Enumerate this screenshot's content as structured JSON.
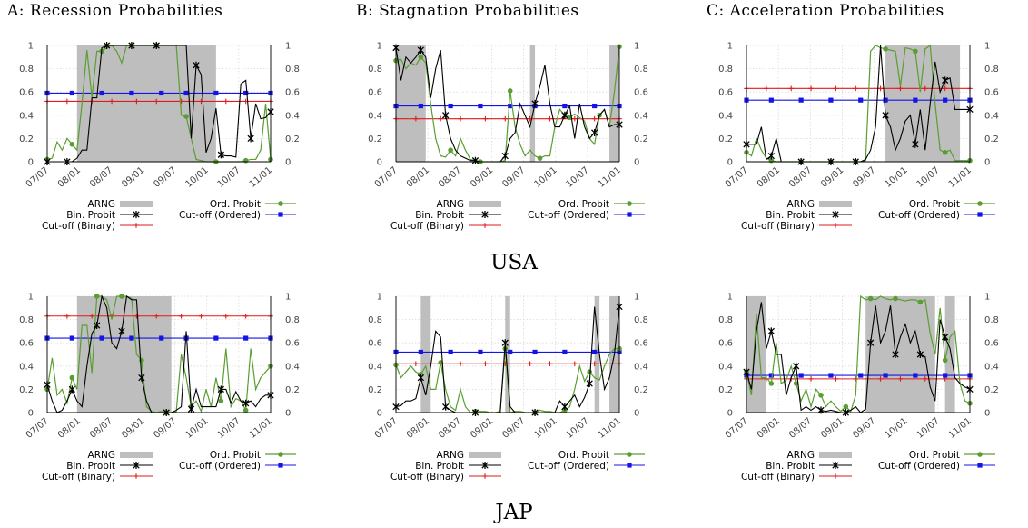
{
  "column_titles": [
    "A: Recession Probabilities",
    "B: Stagnation Probabilities",
    "C: Acceleration Probabilities"
  ],
  "row_labels": [
    "USA",
    "JAP"
  ],
  "legend": {
    "arng": "ARNG",
    "binary": "Bin. Probit",
    "cutoff_binary": "Cut-off (Binary)",
    "ordered": "Ord. Probit",
    "cutoff_ordered": "Cut-off (Ordered)"
  },
  "colors": {
    "arng": "#bebebe",
    "binary": "#000000",
    "ordered": "#5a9e32",
    "cutoff_binary": "#e31a1c",
    "cutoff_ordered": "#1414e6",
    "grid": "#d9d9d9"
  },
  "y_ticks": [
    "0",
    "0.2",
    "0.4",
    "0.6",
    "0.8",
    "1"
  ],
  "chart_data": [
    {
      "type": "line",
      "country": "USA",
      "panel": "A",
      "x_ticks": [
        "07/07",
        "08/01",
        "08/07",
        "09/01",
        "09/07",
        "10/01",
        "10/07",
        "11/01"
      ],
      "ylim": [
        0,
        1
      ],
      "grid": true,
      "legend_position": "bottom",
      "arng": [
        [
          6.0,
          34.0
        ]
      ],
      "cutoff_binary": 0.52,
      "cutoff_ordered": 0.59,
      "binary": [
        0,
        0,
        0,
        0,
        0,
        0,
        0.03,
        0.1,
        0.1,
        0.55,
        0.55,
        0.98,
        1,
        1,
        1,
        1,
        1,
        1,
        1,
        1,
        1,
        1,
        1,
        1,
        1,
        1,
        1,
        1,
        1,
        0.2,
        0.83,
        0.75,
        0.08,
        0.2,
        0.46,
        0.06,
        0.05,
        0.05,
        0.04,
        0.67,
        0.7,
        0.2,
        0.5,
        0.37,
        0.38,
        0.43
      ],
      "ordered": [
        0.02,
        0.03,
        0.17,
        0.1,
        0.2,
        0.15,
        0.1,
        0.5,
        0.96,
        0.55,
        0.95,
        0.95,
        0.98,
        1,
        0.95,
        0.85,
        1,
        1,
        1,
        1,
        1,
        1,
        1,
        1,
        1,
        1,
        1,
        0.4,
        0.39,
        0.2,
        0.02,
        0.01,
        0,
        0,
        0,
        0,
        0,
        0,
        0,
        0,
        0.01,
        0.02,
        0.02,
        0.1,
        0.5,
        0.02
      ],
      "bin_markers": [
        0,
        4,
        12,
        17,
        22,
        30,
        35,
        41,
        45
      ],
      "ord_markers": [
        0,
        5,
        11,
        17,
        22,
        28,
        34,
        40,
        45
      ],
      "cb_markers": [
        0,
        4,
        9,
        13,
        18,
        22,
        27,
        31,
        36,
        40,
        45
      ],
      "co_markers": [
        0,
        5,
        11,
        17,
        23,
        28,
        34,
        40,
        45
      ]
    },
    {
      "type": "line",
      "country": "USA",
      "panel": "B",
      "x_ticks": [
        "07/07",
        "08/01",
        "08/07",
        "09/01",
        "09/07",
        "10/01",
        "10/07",
        "11/01"
      ],
      "ylim": [
        0,
        1
      ],
      "grid": true,
      "legend_position": "bottom",
      "arng": [
        [
          0.0,
          6.0
        ],
        [
          27.0,
          28.0
        ],
        [
          43.0,
          45.0
        ]
      ],
      "cutoff_binary": 0.37,
      "cutoff_ordered": 0.48,
      "binary": [
        0.98,
        0.7,
        0.9,
        0.85,
        0.9,
        0.96,
        0.9,
        0.55,
        0.8,
        0.96,
        0.4,
        0.2,
        0.1,
        0.05,
        0.03,
        0.01,
        0.01,
        0,
        0,
        0,
        0,
        0,
        0.05,
        0.2,
        0.25,
        0.5,
        0.4,
        0.3,
        0.5,
        0.65,
        0.83,
        0.5,
        0.3,
        0.3,
        0.4,
        0.48,
        0.2,
        0.5,
        0.3,
        0.2,
        0.25,
        0.4,
        0.45,
        0.3,
        0.32,
        0.32
      ],
      "ordered": [
        0.87,
        0.88,
        0.8,
        0.85,
        0.83,
        0.9,
        0.85,
        0.5,
        0.2,
        0.05,
        0.04,
        0.1,
        0.05,
        0.2,
        0.1,
        0.02,
        0.01,
        0,
        0,
        0,
        0,
        0,
        0.01,
        0.61,
        0.3,
        0.15,
        0.05,
        0.1,
        0.05,
        0.03,
        0.05,
        0.05,
        0.3,
        0.45,
        0.4,
        0.38,
        0.41,
        0.38,
        0.35,
        0.2,
        0.15,
        0.4,
        0.45,
        0.3,
        0.6,
        0.99
      ],
      "bin_markers": [
        0,
        5,
        10,
        16,
        22,
        28,
        34,
        40,
        45
      ],
      "ord_markers": [
        0,
        5,
        11,
        17,
        23,
        29,
        35,
        41,
        45
      ],
      "cb_markers": [
        0,
        4,
        9,
        13,
        18,
        22,
        27,
        31,
        36,
        40,
        45
      ],
      "co_markers": [
        0,
        5,
        11,
        17,
        23,
        28,
        34,
        40,
        45
      ]
    },
    {
      "type": "line",
      "country": "USA",
      "panel": "C",
      "x_ticks": [
        "07/07",
        "08/01",
        "08/07",
        "09/01",
        "09/07",
        "10/01",
        "10/07",
        "11/01"
      ],
      "ylim": [
        0,
        1
      ],
      "grid": true,
      "legend_position": "bottom",
      "arng": [
        [
          28.0,
          43.0
        ]
      ],
      "cutoff_binary": 0.63,
      "cutoff_ordered": 0.53,
      "binary": [
        0.15,
        0.15,
        0.15,
        0.3,
        0.02,
        0.05,
        0.2,
        0,
        0,
        0,
        0,
        0,
        0,
        0,
        0,
        0,
        0,
        0,
        0,
        0,
        0,
        0,
        0,
        0,
        0.02,
        0.1,
        0.3,
        1,
        0.4,
        0.3,
        0.1,
        0.2,
        0.35,
        0.4,
        0.15,
        0.45,
        0.1,
        0.5,
        0.86,
        0.6,
        0.7,
        0.72,
        0.45,
        0.45,
        0.45,
        0.45
      ],
      "ordered": [
        0.08,
        0.05,
        0.2,
        0.1,
        0.03,
        0.01,
        0,
        0,
        0,
        0,
        0,
        0,
        0,
        0,
        0,
        0,
        0,
        0,
        0,
        0,
        0,
        0,
        0,
        0,
        0.01,
        0.95,
        1,
        0.98,
        0.97,
        0.96,
        0.95,
        0.65,
        0.98,
        0.97,
        0.95,
        0.6,
        0.97,
        1,
        0.5,
        0.1,
        0.08,
        0.1,
        0.01,
        0.01,
        0.01,
        0.01
      ],
      "bin_markers": [
        0,
        5,
        11,
        17,
        22,
        28,
        34,
        40,
        45
      ],
      "ord_markers": [
        0,
        5,
        11,
        17,
        22,
        28,
        34,
        40,
        45
      ],
      "cb_markers": [
        0,
        4,
        9,
        13,
        18,
        22,
        27,
        31,
        36,
        40,
        45
      ],
      "co_markers": [
        0,
        5,
        11,
        17,
        23,
        28,
        34,
        40,
        45
      ]
    },
    {
      "type": "line",
      "country": "JAP",
      "panel": "A",
      "x_ticks": [
        "07/07",
        "08/01",
        "08/07",
        "09/01",
        "09/07",
        "10/01",
        "10/07",
        "11/01"
      ],
      "ylim": [
        0,
        1
      ],
      "grid": true,
      "legend_position": "bottom",
      "arng": [
        [
          6.0,
          16.0
        ],
        [
          16.0,
          25.0
        ]
      ],
      "cutoff_binary": 0.83,
      "cutoff_ordered": 0.64,
      "binary": [
        0.24,
        0.1,
        0,
        0.02,
        0.1,
        0.2,
        0.1,
        0.05,
        0.4,
        0.68,
        0.75,
        1,
        0.9,
        0.6,
        0.55,
        0.7,
        1,
        0.97,
        0.97,
        0.3,
        0.1,
        0,
        0,
        0,
        0,
        0,
        0.02,
        0.05,
        0.7,
        0.03,
        0.2,
        0.05,
        0.05,
        0.05,
        0.05,
        0.2,
        0.2,
        0.08,
        0.18,
        0.1,
        0.08,
        0.1,
        0.05,
        0.12,
        0.15,
        0.15
      ],
      "ordered": [
        0.2,
        0.47,
        0.15,
        0.2,
        0.08,
        0.3,
        0.2,
        0.75,
        0.75,
        0.34,
        1,
        1,
        0.97,
        0.8,
        1,
        1,
        1,
        0.98,
        0.5,
        0.45,
        0.05,
        0.01,
        0,
        0.01,
        0,
        0,
        0.01,
        0.5,
        0.3,
        0.05,
        0.1,
        0.01,
        0.2,
        0.05,
        0.3,
        0.1,
        0.55,
        0.05,
        0.12,
        0.1,
        0.02,
        0.55,
        0.2,
        0.3,
        0.35,
        0.4
      ],
      "bin_markers": [
        0,
        5,
        10,
        15,
        19,
        24,
        29,
        35,
        40,
        45
      ],
      "ord_markers": [
        0,
        5,
        10,
        15,
        19,
        24,
        29,
        35,
        40,
        45
      ],
      "cb_markers": [
        0,
        4,
        9,
        13,
        18,
        22,
        27,
        31,
        36,
        40,
        45
      ],
      "co_markers": [
        0,
        5,
        11,
        17,
        23,
        28,
        34,
        40,
        45
      ]
    },
    {
      "type": "line",
      "country": "JAP",
      "panel": "B",
      "x_ticks": [
        "07/07",
        "08/01",
        "08/07",
        "09/01",
        "09/07",
        "10/01",
        "10/07",
        "11/01"
      ],
      "ylim": [
        0,
        1
      ],
      "grid": true,
      "legend_position": "bottom",
      "arng": [
        [
          5.0,
          7.0
        ],
        [
          22.0,
          23.0
        ],
        [
          40.0,
          41.0
        ],
        [
          43.0,
          45.0
        ]
      ],
      "cutoff_binary": 0.42,
      "cutoff_ordered": 0.52,
      "binary": [
        0.05,
        0.06,
        0.1,
        0.1,
        0.12,
        0.3,
        0.15,
        0.4,
        0.7,
        0.65,
        0.05,
        0.02,
        0,
        0,
        0,
        0,
        0,
        0,
        0,
        0,
        0,
        0,
        0.6,
        0.05,
        0,
        0,
        0,
        0,
        0,
        0,
        0,
        0,
        0,
        0.1,
        0.05,
        0.1,
        0.15,
        0.05,
        0.13,
        0.25,
        0.91,
        0.5,
        0.2,
        0.3,
        0.5,
        0.91
      ],
      "ordered": [
        0.41,
        0.3,
        0.35,
        0.4,
        0.35,
        0.33,
        0.4,
        0.2,
        0.2,
        0.43,
        0.2,
        0.05,
        0.02,
        0.2,
        0.05,
        0,
        0.01,
        0.01,
        0.01,
        0,
        0,
        0.01,
        0.55,
        0,
        0.01,
        0.01,
        0,
        0,
        0,
        0.02,
        0.01,
        0.01,
        0,
        0,
        0.02,
        0.05,
        0.2,
        0.4,
        0.27,
        0.35,
        0.3,
        0.28,
        0.4,
        0.5,
        0.55,
        0.55
      ],
      "bin_markers": [
        0,
        5,
        10,
        16,
        22,
        28,
        34,
        39,
        45
      ],
      "ord_markers": [
        0,
        5,
        9,
        16,
        22,
        28,
        34,
        39,
        45
      ],
      "cb_markers": [
        0,
        4,
        9,
        13,
        18,
        22,
        27,
        31,
        36,
        40,
        45
      ],
      "co_markers": [
        0,
        5,
        11,
        17,
        23,
        28,
        34,
        40,
        45
      ]
    },
    {
      "type": "line",
      "country": "JAP",
      "panel": "C",
      "x_ticks": [
        "07/07",
        "08/01",
        "08/07",
        "09/01",
        "09/07",
        "10/01",
        "10/07",
        "11/01"
      ],
      "ylim": [
        0,
        1
      ],
      "grid": true,
      "legend_position": "bottom",
      "arng": [
        [
          0.0,
          4.0
        ],
        [
          24.0,
          38.0
        ],
        [
          40.0,
          42.0
        ]
      ],
      "cutoff_binary": 0.29,
      "cutoff_ordered": 0.32,
      "binary": [
        0.35,
        0.2,
        0.7,
        0.95,
        0.55,
        0.7,
        0.5,
        0.5,
        0.15,
        0.3,
        0.4,
        0.02,
        0.05,
        0.02,
        0.05,
        0.02,
        0.01,
        0.02,
        0.01,
        0,
        0,
        0.02,
        0.05,
        0,
        0.03,
        0.6,
        0.92,
        0.6,
        0.7,
        0.92,
        0.5,
        0.65,
        0.76,
        0.6,
        0.7,
        0.5,
        0.48,
        0.22,
        0.1,
        0.8,
        0.65,
        0.55,
        0.3,
        0.25,
        0.22,
        0.2
      ],
      "ordered": [
        0.35,
        0.15,
        0.85,
        0.3,
        0.3,
        0.25,
        0.6,
        0.25,
        0.28,
        0.4,
        0.25,
        0.1,
        0.2,
        0.05,
        0.2,
        0.15,
        0.05,
        0.1,
        0.05,
        0.01,
        0.05,
        0.01,
        0.15,
        1,
        0.97,
        0.98,
        0.97,
        1,
        0.98,
        0.97,
        0.98,
        0.97,
        0.96,
        0.97,
        0.97,
        0.95,
        0.97,
        0.68,
        0.5,
        0.9,
        0.45,
        0.65,
        0.7,
        0.25,
        0.1,
        0.08
      ],
      "bin_markers": [
        0,
        5,
        10,
        15,
        20,
        25,
        30,
        35,
        40,
        45
      ],
      "ord_markers": [
        0,
        5,
        10,
        15,
        20,
        25,
        30,
        35,
        40,
        45
      ],
      "cb_markers": [
        0,
        4,
        9,
        13,
        18,
        22,
        27,
        31,
        36,
        40,
        45
      ],
      "co_markers": [
        0,
        5,
        11,
        17,
        23,
        28,
        34,
        40,
        45
      ]
    }
  ]
}
